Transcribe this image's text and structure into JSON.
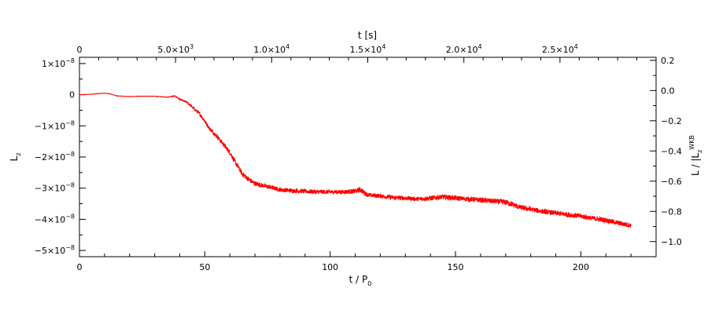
{
  "chart_data": {
    "type": "line",
    "title": "",
    "xlabel": "t / P",
    "xlabel_sub": "0",
    "x2label": "t [s]",
    "ylabel": "L",
    "ylabel_sub": "z",
    "y2label": "L / |L",
    "y2label_sub1": "z",
    "y2label_sub2": "z",
    "y2label_sup": "WKB",
    "xlim": [
      0,
      230
    ],
    "ylim": [
      -5.2e-08,
      1.2e-08
    ],
    "x2lim": [
      0,
      30000
    ],
    "y2lim": [
      -1.1,
      0.22
    ],
    "grid": false,
    "legend": "none",
    "line_color": "#ff0000",
    "x_ticks": [
      {
        "v": 0,
        "label": "0"
      },
      {
        "v": 50,
        "label": "50"
      },
      {
        "v": 100,
        "label": "100"
      },
      {
        "v": 150,
        "label": "150"
      },
      {
        "v": 200,
        "label": "200"
      }
    ],
    "x2_ticks": [
      {
        "v": 0,
        "label": "0",
        "sup": ""
      },
      {
        "v": 5000,
        "label": "5.0×10",
        "sup": "3"
      },
      {
        "v": 10000,
        "label": "1.0×10",
        "sup": "4"
      },
      {
        "v": 15000,
        "label": "1.5×10",
        "sup": "4"
      },
      {
        "v": 20000,
        "label": "2.0×10",
        "sup": "4"
      },
      {
        "v": 25000,
        "label": "2.5×10",
        "sup": "4"
      }
    ],
    "y_ticks": [
      {
        "v": 1e-08,
        "label": "1×10",
        "sup": "−8"
      },
      {
        "v": 0,
        "label": "0",
        "sup": ""
      },
      {
        "v": -1e-08,
        "label": "−1×10",
        "sup": "−8"
      },
      {
        "v": -2e-08,
        "label": "−2×10",
        "sup": "−8"
      },
      {
        "v": -3e-08,
        "label": "−3×10",
        "sup": "−8"
      },
      {
        "v": -4e-08,
        "label": "−4×10",
        "sup": "−8"
      },
      {
        "v": -5e-08,
        "label": "−5×10",
        "sup": "−8"
      }
    ],
    "y2_ticks": [
      {
        "v": 0.2,
        "label": "0.2"
      },
      {
        "v": 0.0,
        "label": "0.0"
      },
      {
        "v": -0.2,
        "label": "−0.2"
      },
      {
        "v": -0.4,
        "label": "−0.4"
      },
      {
        "v": -0.6,
        "label": "−0.6"
      },
      {
        "v": -0.8,
        "label": "−0.8"
      },
      {
        "v": -1.0,
        "label": "−1.0"
      }
    ],
    "series": [
      {
        "x": [
          0,
          5,
          10,
          12,
          15,
          20,
          25,
          30,
          35,
          38,
          40,
          43,
          45,
          48,
          50,
          52,
          55,
          58,
          60,
          62,
          65,
          68,
          70,
          75,
          80,
          85,
          90,
          95,
          100,
          105,
          110,
          112,
          115,
          120,
          125,
          130,
          135,
          140,
          145,
          150,
          155,
          160,
          165,
          170,
          172,
          175,
          180,
          185,
          190,
          195,
          200,
          205,
          210,
          215,
          220
        ],
        "y": [
          0,
          1.5e-10,
          5e-10,
          3e-10,
          -4e-10,
          -6e-10,
          -5e-10,
          -5e-10,
          -8e-10,
          -4e-10,
          -1.5e-09,
          -2.5e-09,
          -4e-09,
          -6.2e-09,
          -8.5e-09,
          -1.1e-08,
          -1.35e-08,
          -1.65e-08,
          -1.85e-08,
          -2.15e-08,
          -2.55e-08,
          -2.75e-08,
          -2.85e-08,
          -2.95e-08,
          -3.05e-08,
          -3.08e-08,
          -3.1e-08,
          -3.12e-08,
          -3.12e-08,
          -3.12e-08,
          -3.1e-08,
          -3.05e-08,
          -3.22e-08,
          -3.25e-08,
          -3.3e-08,
          -3.32e-08,
          -3.35e-08,
          -3.32e-08,
          -3.28e-08,
          -3.32e-08,
          -3.35e-08,
          -3.38e-08,
          -3.42e-08,
          -3.45e-08,
          -3.5e-08,
          -3.6e-08,
          -3.68e-08,
          -3.75e-08,
          -3.8e-08,
          -3.85e-08,
          -3.9e-08,
          -3.97e-08,
          -4.03e-08,
          -4.12e-08,
          -4.2e-08
        ],
        "noise": [
          0,
          5e-11,
          5e-11,
          5e-11,
          5e-11,
          5e-11,
          5e-11,
          5e-11,
          5e-11,
          1e-10,
          2e-10,
          3e-10,
          4e-10,
          6e-10,
          6e-10,
          6e-10,
          7e-10,
          8e-10,
          8e-10,
          8e-10,
          8e-10,
          8e-10,
          8e-10,
          7e-10,
          7e-10,
          7e-10,
          7e-10,
          7e-10,
          7e-10,
          7e-10,
          8e-10,
          9e-10,
          7e-10,
          7e-10,
          7e-10,
          7e-10,
          7e-10,
          8e-10,
          8e-10,
          8e-10,
          8e-10,
          8e-10,
          8e-10,
          9e-10,
          9e-10,
          8e-10,
          8e-10,
          8e-10,
          8e-10,
          8e-10,
          8e-10,
          8e-10,
          8e-10,
          8e-10,
          8e-10
        ]
      }
    ]
  }
}
